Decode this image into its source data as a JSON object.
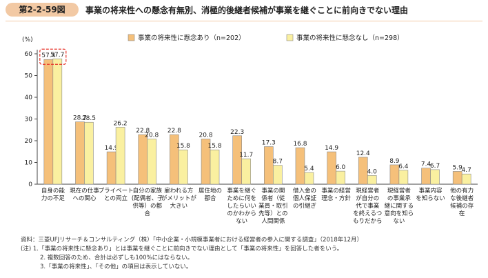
{
  "figure": {
    "number": "第2-2-59図",
    "title": "事業の将来性への懸念有無別、消極的後継者候補が事業を継ぐことに前向きでない理由"
  },
  "notes": [
    "資料：三菱UFJリサーチ＆コンサルティング（株）「中小企業・小規模事業者における経営者の参入に関する調査」（2018年12月）",
    "(注) 1.「事業の将来性に懸念あり」とは事業を継ぐことに前向きでない理由として「事業の将来性」を回答した者をいう。",
    "2. 複数回答のため、合計は必ずしも100%にはならない。",
    "3.「事業の将来性」、「その他」の項目は表示していない。"
  ],
  "colors": {
    "series1": "#f5c07a",
    "series2": "#faf0a0",
    "highlight": "#e8332a"
  },
  "chart_data": {
    "type": "bar",
    "ylabel": "(%)",
    "ylim": [
      0,
      60
    ],
    "yticks": [
      0,
      10,
      20,
      30,
      40,
      50,
      60
    ],
    "categories": [
      [
        "自身の能",
        "力の不足"
      ],
      [
        "現在の仕事",
        "への関心"
      ],
      [
        "プライベート",
        "との両立"
      ],
      [
        "自分の家族",
        "(配偶者、子",
        "供等）の都",
        "合"
      ],
      [
        "雇われる方",
        "がメリットが",
        "大きい"
      ],
      [
        "居住地の",
        "都合"
      ],
      [
        "事業を継ぐ",
        "ために何を",
        "したらいい",
        "のかわから",
        "ない"
      ],
      [
        "事業の関",
        "係者（従",
        "業員・取引",
        "先等）との",
        "人間関係"
      ],
      [
        "借入金の",
        "個人保証",
        "の引継ぎ"
      ],
      [
        "事業の経営",
        "理念・方針"
      ],
      [
        "現経営者",
        "が自分の",
        "代で事業",
        "を終えるつ",
        "もりだから"
      ],
      [
        "現経営者",
        "の事業承",
        "継に関する",
        "意向を知ら",
        "ない"
      ],
      [
        "事業内容",
        "を知らない"
      ],
      [
        "他の有力",
        "な後継者",
        "候補の存",
        "在"
      ]
    ],
    "series": [
      {
        "name": "事業の将来性に懸念あり（n=202）",
        "values": [
          57.4,
          28.7,
          14.9,
          22.8,
          22.8,
          20.8,
          22.3,
          17.3,
          16.8,
          14.9,
          12.4,
          8.9,
          7.4,
          5.9
        ]
      },
      {
        "name": "事業の将来性に懸念なし（n=298）",
        "values": [
          57.7,
          28.5,
          26.2,
          20.8,
          15.8,
          15.8,
          11.7,
          8.7,
          5.4,
          6.0,
          4.0,
          6.4,
          6.7,
          4.7
        ]
      }
    ],
    "legend": "top"
  }
}
